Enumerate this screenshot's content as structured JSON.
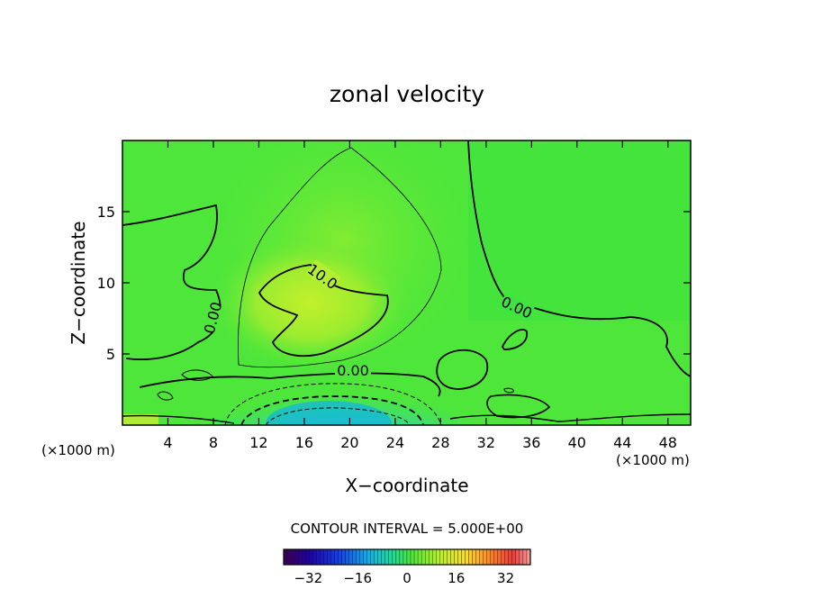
{
  "chart_data": {
    "type": "heatmap",
    "title": "zonal velocity",
    "xlabel": "X−coordinate",
    "ylabel": "Z−coordinate",
    "x_unit_left": "(×1000 m)",
    "x_unit_right": "(×1000 m)",
    "xlim": [
      0,
      50
    ],
    "ylim": [
      0,
      20
    ],
    "x_ticks": [
      4,
      8,
      12,
      16,
      20,
      24,
      28,
      32,
      36,
      40,
      44,
      48
    ],
    "y_ticks": [
      5,
      10,
      15
    ],
    "contour_interval_text": "CONTOUR INTERVAL = 5.000E+00",
    "contour_labels": [
      "10.0",
      "0.00",
      "0.00",
      "0.00"
    ],
    "colorbar": {
      "range": [
        -40,
        40
      ],
      "ticks": [
        -32,
        -16,
        0,
        16,
        32
      ],
      "tick_labels": [
        "−32",
        "−16",
        "0",
        "16",
        "32"
      ]
    },
    "features": [
      {
        "kind": "max",
        "x": 16,
        "z": 9,
        "value": 12
      },
      {
        "kind": "min",
        "x": 17,
        "z": 0.5,
        "value": -18
      }
    ],
    "colors": {
      "background_field": "#55e838",
      "positive_core": "#b8f030",
      "negative_core": "#18c8d8"
    }
  }
}
